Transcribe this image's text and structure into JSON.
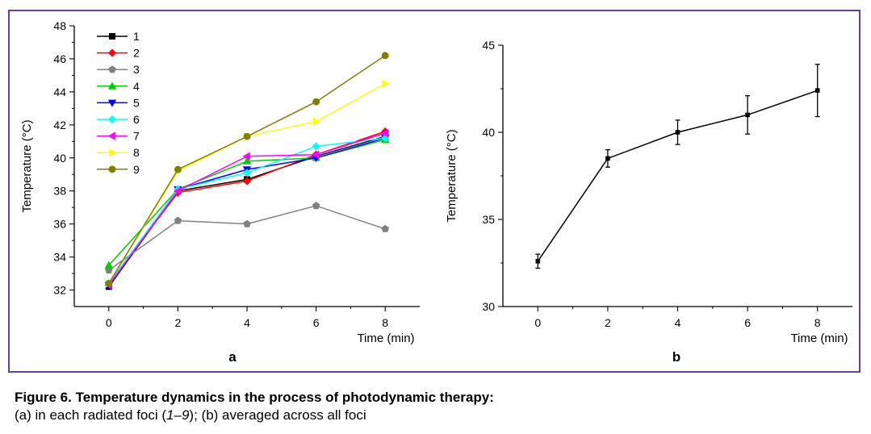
{
  "chart_data": [
    {
      "type": "line",
      "panel_label": "a",
      "xlabel": "Time (min)",
      "ylabel": "Temperature (°C)",
      "xlim": [
        -1,
        9
      ],
      "ylim": [
        31,
        48
      ],
      "xticks": [
        0,
        2,
        4,
        6,
        8
      ],
      "yticks": [
        32,
        34,
        36,
        38,
        40,
        42,
        44,
        46,
        48
      ],
      "legend_position": "top-left",
      "x": [
        0,
        2,
        4,
        6,
        8
      ],
      "series": [
        {
          "name": "1",
          "color": "#000000",
          "marker": "square",
          "values": [
            32.2,
            38.0,
            38.7,
            40.1,
            41.3
          ]
        },
        {
          "name": "2",
          "color": "#ff0000",
          "marker": "diamond",
          "values": [
            32.4,
            37.9,
            38.6,
            40.2,
            41.6
          ]
        },
        {
          "name": "3",
          "color": "#808080",
          "marker": "pentagon",
          "values": [
            33.2,
            36.2,
            36.0,
            37.1,
            35.7
          ]
        },
        {
          "name": "4",
          "color": "#00cc00",
          "marker": "triangle-up",
          "values": [
            33.5,
            38.1,
            39.8,
            40.0,
            41.1
          ]
        },
        {
          "name": "5",
          "color": "#0000ff",
          "marker": "triangle-down",
          "values": [
            32.3,
            38.1,
            39.3,
            40.0,
            41.2
          ]
        },
        {
          "name": "6",
          "color": "#00ffff",
          "marker": "diamond",
          "values": [
            32.4,
            38.1,
            39.1,
            40.7,
            41.2
          ]
        },
        {
          "name": "7",
          "color": "#ff00ff",
          "marker": "triangle-left",
          "values": [
            32.3,
            38.0,
            40.1,
            40.2,
            41.5
          ]
        },
        {
          "name": "8",
          "color": "#ffff00",
          "marker": "triangle-right",
          "values": [
            32.4,
            39.2,
            41.3,
            42.2,
            44.5
          ]
        },
        {
          "name": "9",
          "color": "#808000",
          "marker": "circle",
          "values": [
            32.4,
            39.3,
            41.3,
            43.4,
            46.2
          ]
        }
      ]
    },
    {
      "type": "line",
      "panel_label": "b",
      "xlabel": "Time (min)",
      "ylabel": "Temperature (°C)",
      "xlim": [
        -1,
        9
      ],
      "ylim": [
        30,
        45
      ],
      "xticks": [
        0,
        2,
        4,
        6,
        8
      ],
      "yticks": [
        30,
        35,
        40,
        45
      ],
      "x": [
        0,
        2,
        4,
        6,
        8
      ],
      "series": [
        {
          "color": "#000000",
          "marker": "square",
          "values": [
            32.6,
            38.5,
            40.0,
            41.0,
            42.4
          ],
          "error": [
            0.4,
            0.5,
            0.7,
            1.1,
            1.5
          ]
        }
      ]
    }
  ],
  "caption": {
    "title": "Figure 6. Temperature dynamics in the process of photodynamic therapy:",
    "body_before": "(a) in each radiated foci (",
    "body_em": "1–9",
    "body_after": "); (b) averaged across all foci"
  }
}
